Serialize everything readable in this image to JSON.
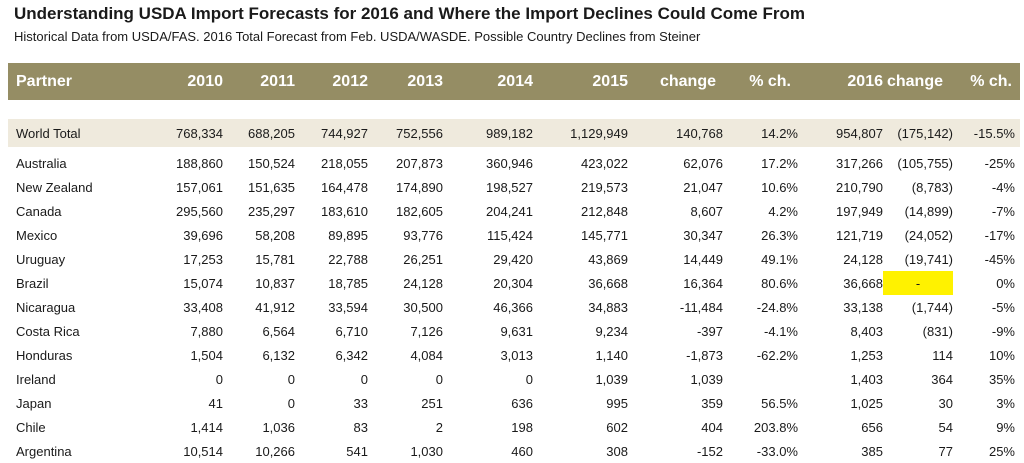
{
  "title": "Understanding USDA Import Forecasts for 2016 and Where the Import Declines Could Come From",
  "subtitle": "Historical Data from USDA/FAS.  2016 Total Forecast from Feb. USDA/WASDE.  Possible Country Declines from Steiner",
  "chart_data": {
    "type": "table",
    "columns": [
      "Partner",
      "2010",
      "2011",
      "2012",
      "2013",
      "2014",
      "2015",
      "change",
      "% ch.",
      "2016",
      "change",
      "% ch."
    ],
    "total": [
      "World Total",
      "768,334",
      "688,205",
      "744,927",
      "752,556",
      "989,182",
      "1,129,949",
      "140,768",
      "14.2%",
      "954,807",
      "(175,142)",
      "-15.5%"
    ],
    "rows": [
      [
        "Australia",
        "188,860",
        "150,524",
        "218,055",
        "207,873",
        "360,946",
        "423,022",
        "62,076",
        "17.2%",
        "317,266",
        "(105,755)",
        "-25%"
      ],
      [
        "New Zealand",
        "157,061",
        "151,635",
        "164,478",
        "174,890",
        "198,527",
        "219,573",
        "21,047",
        "10.6%",
        "210,790",
        "(8,783)",
        "-4%"
      ],
      [
        "Canada",
        "295,560",
        "235,297",
        "183,610",
        "182,605",
        "204,241",
        "212,848",
        "8,607",
        "4.2%",
        "197,949",
        "(14,899)",
        "-7%"
      ],
      [
        "Mexico",
        "39,696",
        "58,208",
        "89,895",
        "93,776",
        "115,424",
        "145,771",
        "30,347",
        "26.3%",
        "121,719",
        "(24,052)",
        "-17%"
      ],
      [
        "Uruguay",
        "17,253",
        "15,781",
        "22,788",
        "26,251",
        "29,420",
        "43,869",
        "14,449",
        "49.1%",
        "24,128",
        "(19,741)",
        "-45%"
      ],
      [
        "Brazil",
        "15,074",
        "10,837",
        "18,785",
        "24,128",
        "20,304",
        "36,668",
        "16,364",
        "80.6%",
        "36,668",
        "-",
        "0%"
      ],
      [
        "Nicaragua",
        "33,408",
        "41,912",
        "33,594",
        "30,500",
        "46,366",
        "34,883",
        "-11,484",
        "-24.8%",
        "33,138",
        "(1,744)",
        "-5%"
      ],
      [
        "Costa Rica",
        "7,880",
        "6,564",
        "6,710",
        "7,126",
        "9,631",
        "9,234",
        "-397",
        "-4.1%",
        "8,403",
        "(831)",
        "-9%"
      ],
      [
        "Honduras",
        "1,504",
        "6,132",
        "6,342",
        "4,084",
        "3,013",
        "1,140",
        "-1,873",
        "-62.2%",
        "1,253",
        "114",
        "10%"
      ],
      [
        "Ireland",
        "0",
        "0",
        "0",
        "0",
        "0",
        "1,039",
        "1,039",
        "",
        "1,403",
        "364",
        "35%"
      ],
      [
        "Japan",
        "41",
        "0",
        "33",
        "251",
        "636",
        "995",
        "359",
        "56.5%",
        "1,025",
        "30",
        "3%"
      ],
      [
        "Chile",
        "1,414",
        "1,036",
        "83",
        "2",
        "198",
        "602",
        "404",
        "203.8%",
        "656",
        "54",
        "9%"
      ],
      [
        "Argentina",
        "10,514",
        "10,266",
        "541",
        "1,030",
        "460",
        "308",
        "-152",
        "-33.0%",
        "385",
        "77",
        "25%"
      ]
    ],
    "highlight": {
      "row": "Brazil",
      "column": 10,
      "color": "#fff200"
    }
  }
}
